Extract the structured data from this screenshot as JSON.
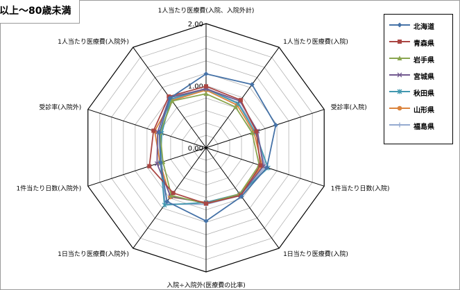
{
  "chart_title": "以上～80歳未満",
  "chart_data": {
    "type": "radar",
    "title": "以上～80歳未満",
    "axes": [
      "1人当たり医療費(入院、入院外計)",
      "1人当たり医療費(入院)",
      "受診率(入院)",
      "1件当たり日数(入院)",
      "1日当たり医療費(入院)",
      "入院÷入院外(医療費の比率)",
      "1日当たり医療費(入院外)",
      "1件当たり日数(入院外)",
      "受診率(入院外)",
      "1人当たり医療費(入院外)"
    ],
    "range": [
      0,
      2.0
    ],
    "rings": 10,
    "tick_labels": [
      {
        "ring": 0,
        "label": "0.00"
      },
      {
        "ring": 5,
        "label": "1.00"
      },
      {
        "ring": 10,
        "label": "2.00"
      }
    ],
    "series": [
      {
        "name": "北海道",
        "color": "#4572A7",
        "marker": "diamond",
        "values": [
          1.19,
          1.26,
          1.18,
          1.03,
          0.97,
          1.18,
          1.07,
          0.77,
          0.79,
          0.99
        ]
      },
      {
        "name": "青森県",
        "color": "#AA4643",
        "marker": "square",
        "values": [
          0.99,
          0.95,
          0.85,
          0.92,
          0.95,
          0.9,
          0.9,
          0.96,
          0.89,
          1.02
        ]
      },
      {
        "name": "岩手県",
        "color": "#89A54E",
        "marker": "triangle",
        "values": [
          0.87,
          0.81,
          0.78,
          0.9,
          0.92,
          0.9,
          0.95,
          0.73,
          0.78,
          0.93
        ]
      },
      {
        "name": "宮城県",
        "color": "#71588F",
        "marker": "x",
        "values": [
          0.95,
          0.93,
          0.87,
          0.97,
          0.94,
          0.89,
          0.97,
          0.83,
          0.82,
          1.0
        ]
      },
      {
        "name": "秋田県",
        "color": "#4198AF",
        "marker": "asterisk",
        "values": [
          0.95,
          0.88,
          0.83,
          1.05,
          0.92,
          0.88,
          1.14,
          0.77,
          0.75,
          0.97
        ]
      },
      {
        "name": "山形県",
        "color": "#DB843D",
        "marker": "circle",
        "values": [
          0.93,
          0.85,
          0.81,
          0.95,
          0.92,
          0.88,
          0.98,
          0.78,
          0.87,
          0.94
        ]
      },
      {
        "name": "福島県",
        "color": "#93A9CF",
        "marker": "plus",
        "values": [
          0.96,
          0.89,
          0.86,
          1.0,
          0.95,
          0.91,
          1.12,
          0.75,
          0.77,
          0.95
        ]
      }
    ],
    "grid": true,
    "legend_position": "right"
  }
}
